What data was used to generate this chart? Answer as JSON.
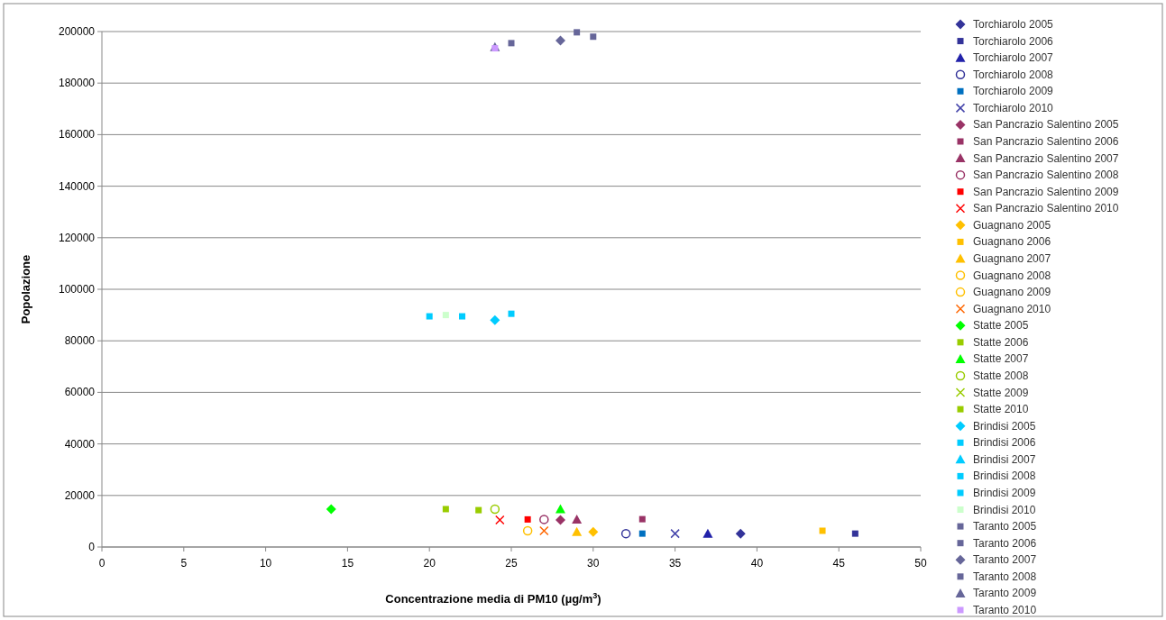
{
  "chart_data": {
    "type": "scatter",
    "xlabel": "Concentrazione media di PM10 (µg/m$^{3}$)",
    "ylabel": "Popolazione",
    "xlim": [
      0,
      50
    ],
    "xticks": [
      0,
      5,
      10,
      15,
      20,
      25,
      30,
      35,
      40,
      45,
      50
    ],
    "ylim": [
      0,
      200000
    ],
    "yticks": [
      0,
      20000,
      40000,
      60000,
      80000,
      100000,
      120000,
      140000,
      160000,
      180000,
      200000
    ],
    "grid": "y",
    "legend": "right",
    "series": [
      {
        "name": "Torchiarolo 2005",
        "color": "#333399",
        "marker": "diamond",
        "x": [
          39
        ],
        "values": [
          5200
        ]
      },
      {
        "name": "Torchiarolo 2006",
        "color": "#333399",
        "marker": "square",
        "x": [
          46
        ],
        "values": [
          5200
        ]
      },
      {
        "name": "Torchiarolo 2007",
        "color": "#2222aa",
        "marker": "triangle",
        "x": [
          37
        ],
        "values": [
          5200
        ]
      },
      {
        "name": "Torchiarolo 2008",
        "color": "#333399",
        "marker": "circle",
        "x": [
          32
        ],
        "values": [
          5200
        ]
      },
      {
        "name": "Torchiarolo 2009",
        "color": "#0070c0",
        "marker": "square",
        "x": [
          33
        ],
        "values": [
          5200
        ]
      },
      {
        "name": "Torchiarolo 2010",
        "color": "#4444aa",
        "marker": "cross",
        "x": [
          35
        ],
        "values": [
          5200
        ]
      },
      {
        "name": "San Pancrazio Salentino 2005",
        "color": "#993366",
        "marker": "diamond",
        "x": [
          28
        ],
        "values": [
          10500
        ]
      },
      {
        "name": "San Pancrazio Salentino 2006",
        "color": "#993366",
        "marker": "square",
        "x": [
          33
        ],
        "values": [
          10800
        ]
      },
      {
        "name": "San Pancrazio Salentino 2007",
        "color": "#993366",
        "marker": "triangle",
        "x": [
          29
        ],
        "values": [
          10700
        ]
      },
      {
        "name": "San Pancrazio Salentino 2008",
        "color": "#993366",
        "marker": "circle",
        "x": [
          27
        ],
        "values": [
          10700
        ]
      },
      {
        "name": "San Pancrazio Salentino 2009",
        "color": "#ff0000",
        "marker": "square",
        "x": [
          26
        ],
        "values": [
          10700
        ]
      },
      {
        "name": "San Pancrazio Salentino 2010",
        "color": "#ff0000",
        "marker": "cross",
        "x": [
          24.3
        ],
        "values": [
          10500
        ]
      },
      {
        "name": "Guagnano 2005",
        "color": "#ffc000",
        "marker": "diamond",
        "x": [
          30
        ],
        "values": [
          5900
        ]
      },
      {
        "name": "Guagnano 2006",
        "color": "#ffc000",
        "marker": "square",
        "x": [
          44
        ],
        "values": [
          6300
        ]
      },
      {
        "name": "Guagnano 2007",
        "color": "#ffc000",
        "marker": "triangle",
        "x": [
          29
        ],
        "values": [
          5900
        ]
      },
      {
        "name": "Guagnano 2008",
        "color": "#ffc000",
        "marker": "circle",
        "x": [
          26
        ],
        "values": [
          6300
        ]
      },
      {
        "name": "Guagnano 2009",
        "color": "#ffc000",
        "marker": "circle",
        "x": [
          null
        ],
        "values": [
          null
        ]
      },
      {
        "name": "Guagnano 2010",
        "color": "#ff6600",
        "marker": "cross",
        "x": [
          27
        ],
        "values": [
          6300
        ]
      },
      {
        "name": "Statte 2005",
        "color": "#00ff00",
        "marker": "diamond",
        "x": [
          14
        ],
        "values": [
          14700
        ]
      },
      {
        "name": "Statte 2006",
        "color": "#99cc00",
        "marker": "square",
        "x": [
          23
        ],
        "values": [
          14300
        ]
      },
      {
        "name": "Statte 2007",
        "color": "#00ff00",
        "marker": "triangle",
        "x": [
          28
        ],
        "values": [
          14700
        ]
      },
      {
        "name": "Statte 2008",
        "color": "#99cc00",
        "marker": "circle",
        "x": [
          24
        ],
        "values": [
          14700
        ]
      },
      {
        "name": "Statte 2009",
        "color": "#99cc00",
        "marker": "cross",
        "x": [
          null
        ],
        "values": [
          null
        ]
      },
      {
        "name": "Statte 2010",
        "color": "#99cc00",
        "marker": "square",
        "x": [
          21
        ],
        "values": [
          14700
        ]
      },
      {
        "name": "Brindisi 2005",
        "color": "#00ccff",
        "marker": "diamond",
        "x": [
          24
        ],
        "values": [
          88000
        ]
      },
      {
        "name": "Brindisi 2006",
        "color": "#00ccff",
        "marker": "square",
        "x": [
          25
        ],
        "values": [
          90500
        ]
      },
      {
        "name": "Brindisi 2007",
        "color": "#00ccff",
        "marker": "triangle",
        "x": [
          null
        ],
        "values": [
          null
        ]
      },
      {
        "name": "Brindisi 2008",
        "color": "#00ccff",
        "marker": "square",
        "x": [
          20
        ],
        "values": [
          89500
        ]
      },
      {
        "name": "Brindisi 2009",
        "color": "#00ccff",
        "marker": "square",
        "x": [
          22
        ],
        "values": [
          89500
        ]
      },
      {
        "name": "Brindisi 2010",
        "color": "#ccffcc",
        "marker": "square",
        "x": [
          21
        ],
        "values": [
          90000
        ]
      },
      {
        "name": "Taranto 2005",
        "color": "#666699",
        "marker": "square",
        "x": [
          29
        ],
        "values": [
          199700
        ]
      },
      {
        "name": "Taranto 2006",
        "color": "#666699",
        "marker": "square",
        "x": [
          30
        ],
        "values": [
          198000
        ]
      },
      {
        "name": "Taranto 2007",
        "color": "#666699",
        "marker": "diamond",
        "x": [
          28
        ],
        "values": [
          196500
        ]
      },
      {
        "name": "Taranto 2008",
        "color": "#666699",
        "marker": "square",
        "x": [
          25
        ],
        "values": [
          195500
        ]
      },
      {
        "name": "Taranto 2009",
        "color": "#666699",
        "marker": "triangle",
        "x": [
          24
        ],
        "values": [
          194000
        ]
      },
      {
        "name": "Taranto 2010",
        "color": "#cc99ff",
        "marker": "square",
        "x": [
          24
        ],
        "values": [
          193500
        ]
      }
    ]
  }
}
